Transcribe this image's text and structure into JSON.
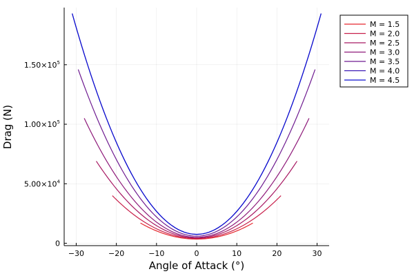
{
  "chart_data": {
    "type": "line",
    "xlabel": "Angle of Attack (°)",
    "ylabel": "Drag (N)",
    "xlim": [
      -33,
      33
    ],
    "ylim": [
      -2000,
      198000
    ],
    "x_ticks": [
      -30,
      -20,
      -10,
      0,
      10,
      20,
      30
    ],
    "x_tick_labels": [
      "−30",
      "−20",
      "−10",
      "0",
      "10",
      "20",
      "30"
    ],
    "y_ticks": [
      {
        "value": 0,
        "label": "0",
        "exp": ""
      },
      {
        "value": 50000,
        "label": "5.00×10",
        "exp": "4"
      },
      {
        "value": 100000,
        "label": "1.00×10",
        "exp": "5"
      },
      {
        "value": 150000,
        "label": "1.50×10",
        "exp": "5"
      }
    ],
    "grid": true,
    "legend_position": "top-right (outside)",
    "series": [
      {
        "name": "M = 1.5",
        "color": "#e5262c",
        "x_range": [
          -14,
          14
        ],
        "y_min": 3500,
        "y_at_ends": 17000
      },
      {
        "name": "M = 2.0",
        "color": "#c81f4a",
        "x_range": [
          -21,
          21
        ],
        "y_min": 4000,
        "y_at_ends": 40000
      },
      {
        "name": "M = 2.5",
        "color": "#a81963",
        "x_range": [
          -25,
          25
        ],
        "y_min": 4500,
        "y_at_ends": 69000
      },
      {
        "name": "M = 3.0",
        "color": "#8e1a7a",
        "x_range": [
          -28,
          28
        ],
        "y_min": 5000,
        "y_at_ends": 105000
      },
      {
        "name": "M = 3.5",
        "color": "#6e1b90",
        "x_range": [
          -29.5,
          29.5
        ],
        "y_min": 6000,
        "y_at_ends": 146000
      },
      {
        "name": "M = 4.0",
        "color": "#3a18b5",
        "x_range": [
          -31,
          31
        ],
        "y_min": 7500,
        "y_at_ends": 193000
      },
      {
        "name": "M = 4.5",
        "color": "#0a0fd1",
        "x_range": [
          -31,
          31
        ],
        "y_min": 7500,
        "y_at_ends": 193000
      }
    ]
  }
}
